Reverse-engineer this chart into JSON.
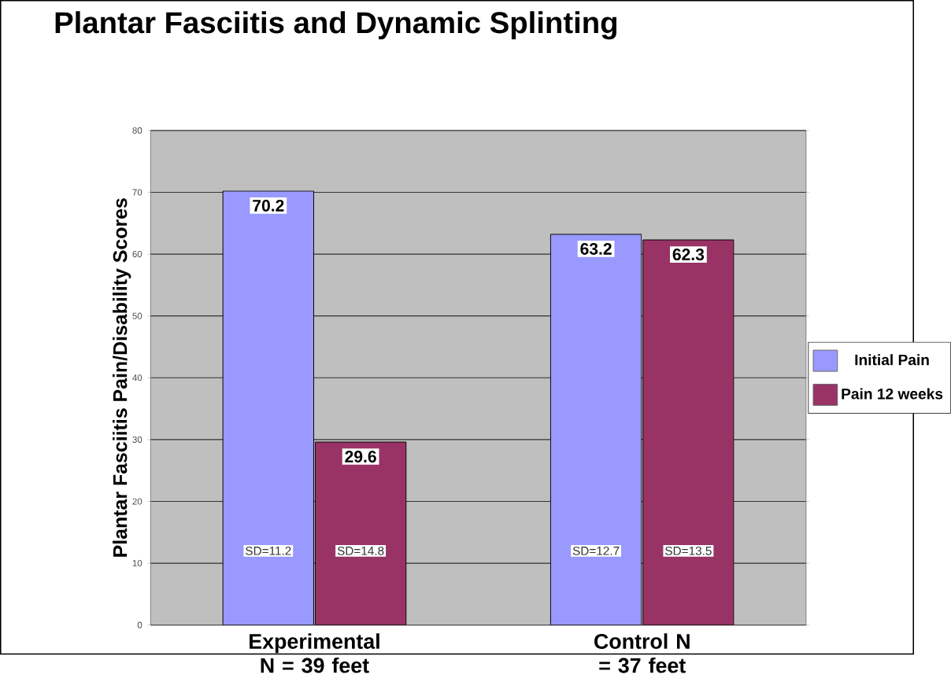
{
  "chart_data": {
    "type": "bar",
    "title": "Plantar Fasciitis and Dynamic Splinting",
    "ylabel": "Plantar Fasciitis Pain/Disability Scores",
    "categories": [
      "Experimental N = 39 feet",
      "Control N = 37 feet"
    ],
    "series": [
      {
        "name": "Initial Pain",
        "color": "#9999ff",
        "values": [
          70.2,
          63.2
        ]
      },
      {
        "name": "Pain 12 weeks",
        "color": "#993366",
        "values": [
          29.6,
          62.3
        ]
      }
    ],
    "ylim": [
      0,
      80
    ],
    "yticks": [
      0,
      10,
      20,
      30,
      40,
      50,
      60,
      70,
      80
    ],
    "grid": "y",
    "legend": "right",
    "data_labels": true,
    "annotations": [
      "SD=11.2",
      "SD=14.8",
      "SD=12.7",
      "SD=13.5"
    ]
  }
}
